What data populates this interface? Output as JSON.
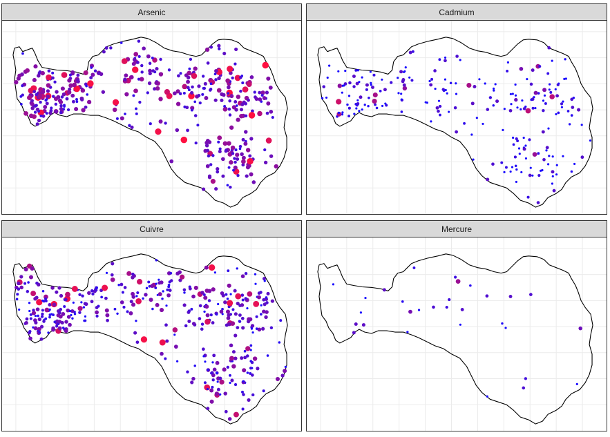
{
  "figure": {
    "type": "faceted point map",
    "grid": true,
    "legend": "none",
    "point_color_low": "#1a0dff",
    "point_color_high": "#ff1040",
    "background": "#ffffff",
    "grid_color": "#ebebeb",
    "strip_fill": "#d9d9d9",
    "outline_color": "#000000"
  },
  "panels": [
    {
      "id": "arsenic",
      "title": "Arsenic",
      "point_density": "high",
      "concentration_level": "high"
    },
    {
      "id": "cadmium",
      "title": "Cadmium",
      "point_density": "medium",
      "concentration_level": "low"
    },
    {
      "id": "cuivre",
      "title": "Cuivre",
      "point_density": "high",
      "concentration_level": "medium"
    },
    {
      "id": "mercure",
      "title": "Mercure",
      "point_density": "sparse",
      "concentration_level": "low"
    }
  ]
}
